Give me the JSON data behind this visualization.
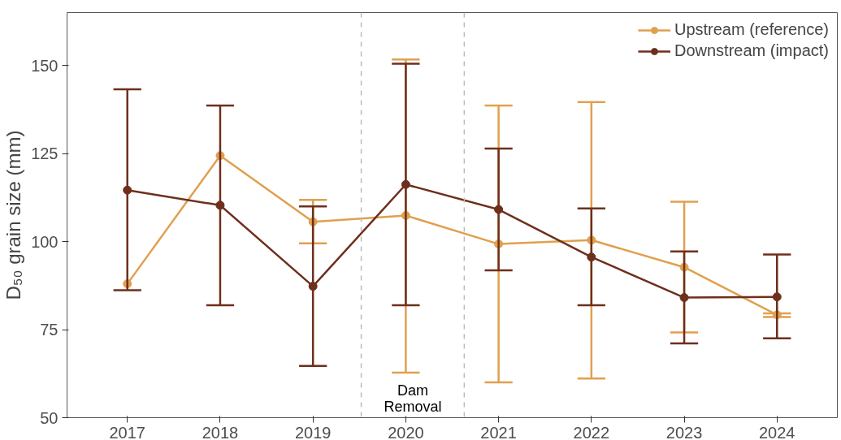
{
  "chart_data": {
    "type": "line",
    "ylabel": "D₅₀ grain size (mm)",
    "x": [
      2017,
      2018,
      2019,
      2020,
      2021,
      2022,
      2023,
      2024
    ],
    "xlim": [
      2016.35,
      2024.65
    ],
    "xticks": [
      2017,
      2018,
      2019,
      2020,
      2021,
      2022,
      2023,
      2024
    ],
    "ylim": [
      50,
      165
    ],
    "yticks": [
      50,
      75,
      100,
      125,
      150
    ],
    "marker": "circle",
    "line_style": "solid",
    "grid": false,
    "legend": "top right",
    "series": [
      {
        "name": "Upstream (reference)",
        "color": "#e0a04e",
        "values": [
          88,
          124.4,
          105.6,
          107.4,
          99.3,
          100.4,
          92.7,
          79.2
        ],
        "errors": [
          null,
          null,
          [
            99.5,
            111.8
          ],
          [
            62.8,
            151.7
          ],
          [
            60,
            138.6
          ],
          [
            61.1,
            139.6
          ],
          [
            74.2,
            111.3
          ],
          [
            78.6,
            79.6
          ]
        ]
      },
      {
        "name": "Downstream (impact)",
        "color": "#6e2f1c",
        "values": [
          114.6,
          110.3,
          87.3,
          116.2,
          109.1,
          95.6,
          84.1,
          84.3
        ],
        "errors": [
          [
            86.2,
            143.2
          ],
          [
            81.9,
            138.6
          ],
          [
            64.7,
            110
          ],
          [
            81.9,
            150.5
          ],
          [
            91.8,
            126.4
          ],
          [
            81.9,
            109.4
          ],
          [
            71.1,
            97.2
          ],
          [
            72.5,
            96.3
          ]
        ]
      }
    ],
    "ref_lines": [
      {
        "axis": "x",
        "value": 2019.52,
        "color": "#bbbbbb",
        "line_style": "dashed"
      },
      {
        "axis": "x",
        "value": 2020.63,
        "color": "#bbbbbb",
        "line_style": "dashed"
      }
    ],
    "annotations": [
      "Dam\nRemoval"
    ]
  }
}
